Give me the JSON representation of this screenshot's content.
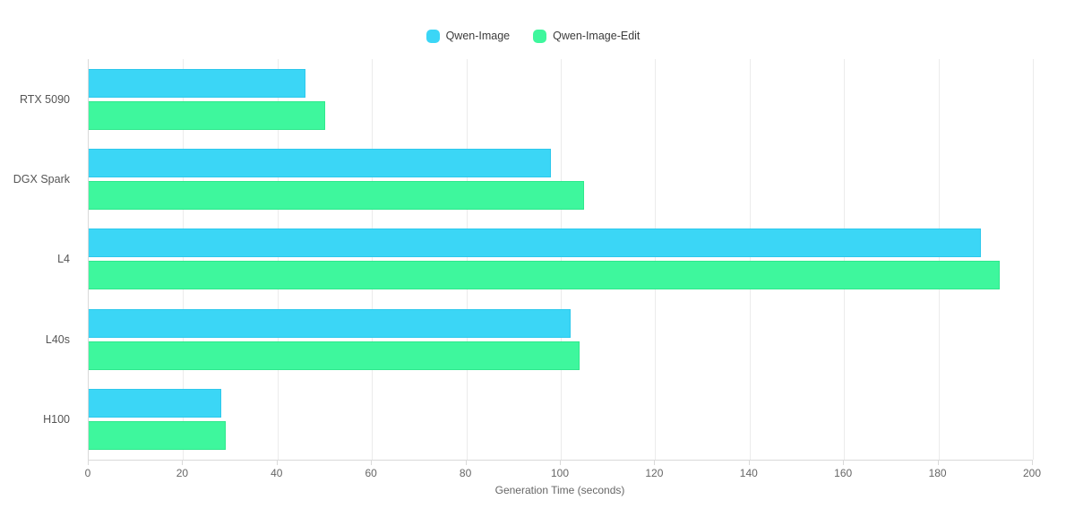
{
  "chart_data": {
    "type": "bar",
    "orientation": "horizontal",
    "title": "",
    "xlabel": "Generation Time (seconds)",
    "ylabel": "",
    "categories": [
      "RTX 5090",
      "DGX Spark",
      "L4",
      "L40s",
      "H100"
    ],
    "series": [
      {
        "name": "Qwen-Image",
        "color": "#3BD6F6",
        "border_color": "#2EC8EC",
        "values": [
          46,
          98,
          189,
          102,
          28
        ]
      },
      {
        "name": "Qwen-Image-Edit",
        "color": "#3EF79D",
        "border_color": "#2FE88D",
        "values": [
          50,
          105,
          193,
          104,
          29
        ]
      }
    ],
    "xlim": [
      0,
      200
    ],
    "xticks": [
      0,
      20,
      40,
      60,
      80,
      100,
      120,
      140,
      160,
      180,
      200
    ],
    "grid": true,
    "legend_position": "top-center"
  },
  "colors": {
    "gridline": "#ebebeb",
    "axis_line": "#d9d9d9",
    "tick_text": "#666666",
    "category_text": "#555555",
    "legend_text": "#3c3c3c"
  }
}
